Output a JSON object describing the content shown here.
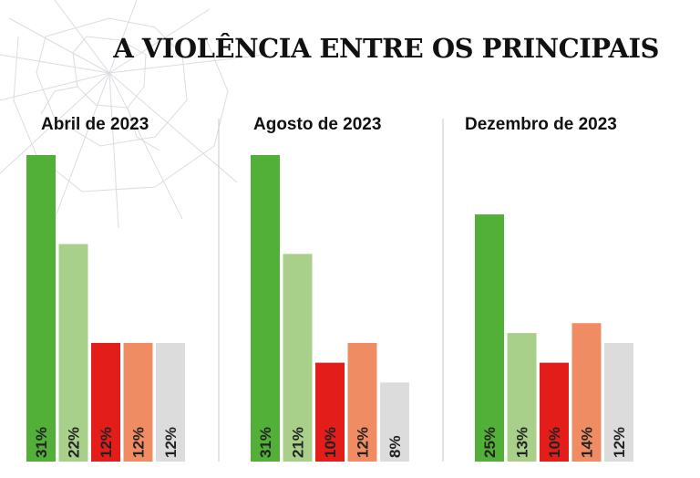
{
  "title": "A VIOLÊNCIA ENTRE OS PRINCIPAIS",
  "colors": [
    "#52b038",
    "#a8d08a",
    "#e31e1a",
    "#f08c64",
    "#dcdcdc"
  ],
  "chart_data": [
    {
      "type": "bar",
      "title": "Abril de 2023",
      "values": [
        31,
        22,
        12,
        12,
        12
      ],
      "data_labels": [
        "31%",
        "22%",
        "12%",
        "12%",
        "12%"
      ],
      "ylim": [
        0,
        31
      ]
    },
    {
      "type": "bar",
      "title": "Agosto de 2023",
      "values": [
        31,
        21,
        10,
        12,
        8
      ],
      "data_labels": [
        "31%",
        "21%",
        "10%",
        "12%",
        "8%"
      ],
      "ylim": [
        0,
        31
      ]
    },
    {
      "type": "bar",
      "title": "Dezembro de 2023",
      "values": [
        25,
        13,
        10,
        14,
        12
      ],
      "data_labels": [
        "25%",
        "13%",
        "10%",
        "14%",
        "12%"
      ],
      "ylim": [
        0,
        31
      ]
    }
  ]
}
